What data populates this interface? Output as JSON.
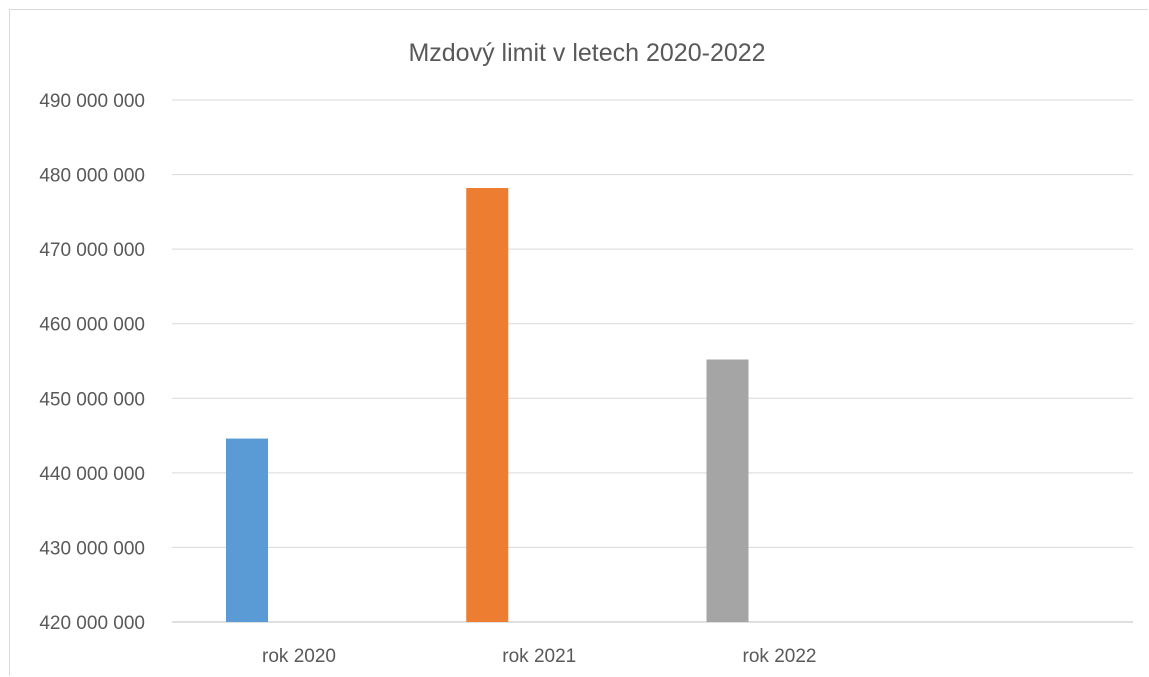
{
  "chart_data": {
    "type": "bar",
    "title": "Mzdový limit v letech 2020-2022",
    "categories": [
      "rok 2020",
      "rok 2021",
      "rok 2022",
      ""
    ],
    "values": [
      444600000,
      478200000,
      455200000,
      null
    ],
    "bar_colors": [
      "#5b9bd5",
      "#ed7d31",
      "#a5a5a5"
    ],
    "ylim": [
      420000000,
      490000000
    ],
    "yticks": [
      420000000,
      430000000,
      440000000,
      450000000,
      460000000,
      470000000,
      480000000,
      490000000
    ],
    "ytick_labels": [
      "420 000 000",
      "430 000 000",
      "440 000 000",
      "450 000 000",
      "460 000 000",
      "470 000 000",
      "480 000 000",
      "490 000 000"
    ],
    "xlabel": "",
    "ylabel": "",
    "grid": true,
    "legend": "none"
  }
}
